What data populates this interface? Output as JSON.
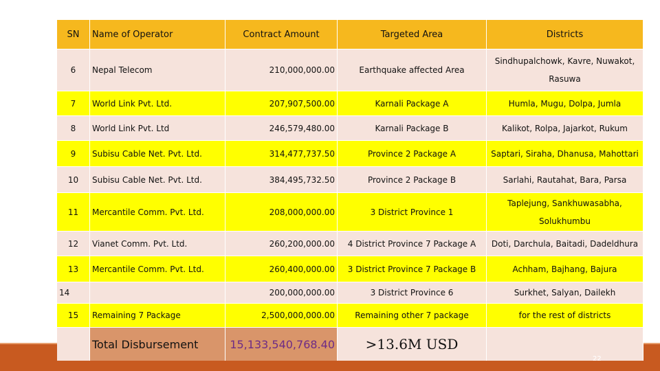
{
  "headers": {
    "sn": "SN",
    "operator": "Name of Operator",
    "amount": "Contract Amount",
    "area": "Targeted Area",
    "districts": "Districts"
  },
  "rows": [
    {
      "sn": "6",
      "operator": "Nepal Telecom",
      "amount": "210,000,000.00",
      "area": "Earthquake affected Area",
      "districts_l1": "Sindhupalchowk, Kavre, Nuwakot,",
      "districts_l2": "Rasuwa"
    },
    {
      "sn": "7",
      "operator": "World Link Pvt. Ltd.",
      "amount": "207,907,500.00",
      "area": "Karnali Package A",
      "districts": "Humla, Mugu, Dolpa, Jumla"
    },
    {
      "sn": "8",
      "operator": "World Link Pvt. Ltd",
      "amount": "246,579,480.00",
      "area": "Karnali Package B",
      "districts": "Kalikot, Rolpa, Jajarkot, Rukum"
    },
    {
      "sn": "9",
      "operator": "Subisu Cable Net. Pvt. Ltd.",
      "amount": "314,477,737.50",
      "area": "Province 2 Package A",
      "districts": "Saptari, Siraha, Dhanusa, Mahottari"
    },
    {
      "sn": "10",
      "operator": "Subisu Cable Net. Pvt. Ltd.",
      "amount": "384,495,732.50",
      "area": "Province 2 Package B",
      "districts": "Sarlahi, Rautahat, Bara, Parsa"
    },
    {
      "sn": "11",
      "operator": "Mercantile Comm. Pvt. Ltd.",
      "amount": "208,000,000.00",
      "area": "3 District Province 1",
      "districts_l1": "Taplejung, Sankhuwasabha,",
      "districts_l2": "Solukhumbu"
    },
    {
      "sn": "12",
      "operator": "Vianet Comm. Pvt. Ltd.",
      "amount": "260,200,000.00",
      "area": "4 District Province 7 Package A",
      "districts": "Doti, Darchula, Baitadi, Dadeldhura"
    },
    {
      "sn": "13",
      "operator": "Mercantile Comm. Pvt. Ltd.",
      "amount": "260,400,000.00",
      "area": "3 District Province 7 Package B",
      "districts": "Achham, Bajhang, Bajura"
    },
    {
      "sn": "14",
      "operator": "",
      "amount": "200,000,000.00",
      "area": "3 District Province 6",
      "districts": "Surkhet, Salyan, Dailekh"
    },
    {
      "sn": "15",
      "operator": "Remaining 7 Package",
      "amount": "2,500,000,000.00",
      "area": "Remaining other 7 package",
      "districts": "for the rest of districts"
    }
  ],
  "total": {
    "label": "Total Disbursement",
    "amount": "15,133,540,768.40",
    "usd": ">13.6M USD"
  },
  "page_number": "22",
  "colors": {
    "header": "#f6b81e",
    "row_tan": "#f6e3dc",
    "row_yellow": "#ffff00",
    "total_cell": "#d9956a",
    "bottom_bar": "#c85a20"
  }
}
